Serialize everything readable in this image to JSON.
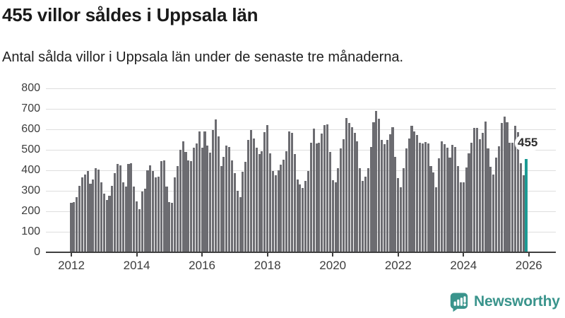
{
  "header": {
    "title": "455 villor såldes i Uppsala län",
    "subtitle": "Antal sålda villor i Uppsala län under de senaste tre månaderna."
  },
  "chart_data": {
    "type": "bar",
    "title": "455 villor såldes i Uppsala län",
    "subtitle": "Antal sålda villor i Uppsala län under de senaste tre månaderna.",
    "x_unit": "month",
    "x_range": [
      "2012-01",
      "2025-12"
    ],
    "x_tick_labels": [
      "2012",
      "2014",
      "2016",
      "2018",
      "2020",
      "2022",
      "2024",
      "2026"
    ],
    "ylim": [
      0,
      800
    ],
    "ytick_labels": [
      "0",
      "100",
      "200",
      "300",
      "400",
      "500",
      "600",
      "700",
      "800"
    ],
    "grid": true,
    "legend": "none",
    "bar_color": "#6c6c71",
    "highlight_color": "#1b9a94",
    "highlight_index_from_end": 1,
    "highlight_label": "455",
    "values": [
      240,
      245,
      270,
      325,
      365,
      380,
      395,
      335,
      355,
      410,
      405,
      340,
      285,
      255,
      275,
      325,
      385,
      430,
      425,
      340,
      320,
      430,
      435,
      320,
      250,
      210,
      295,
      310,
      400,
      425,
      395,
      365,
      370,
      445,
      450,
      320,
      245,
      240,
      365,
      420,
      500,
      540,
      490,
      450,
      445,
      510,
      530,
      590,
      510,
      590,
      520,
      487,
      595,
      650,
      567,
      421,
      467,
      520,
      513,
      450,
      386,
      300,
      268,
      394,
      441,
      547,
      595,
      555,
      510,
      480,
      492,
      587,
      622,
      484,
      398,
      375,
      400,
      427,
      452,
      492,
      590,
      582,
      478,
      354,
      330,
      314,
      348,
      398,
      536,
      605,
      530,
      536,
      580,
      620,
      625,
      490,
      352,
      340,
      409,
      507,
      553,
      656,
      630,
      610,
      582,
      541,
      411,
      348,
      370,
      411,
      513,
      633,
      690,
      653,
      550,
      527,
      550,
      576,
      612,
      467,
      363,
      317,
      409,
      507,
      555,
      616,
      590,
      572,
      536,
      530,
      538,
      530,
      420,
      390,
      317,
      460,
      541,
      527,
      509,
      463,
      524,
      515,
      421,
      340,
      343,
      415,
      484,
      536,
      607,
      607,
      553,
      582,
      639,
      507,
      417,
      380,
      463,
      516,
      630,
      662,
      636,
      536,
      536,
      616,
      585,
      435,
      377,
      455
    ]
  },
  "annotation": {
    "last_value_label": "455"
  },
  "branding": {
    "name": "Newsworthy",
    "color": "#3a948c",
    "icon": "newsworthy-chart-bubble-icon"
  }
}
